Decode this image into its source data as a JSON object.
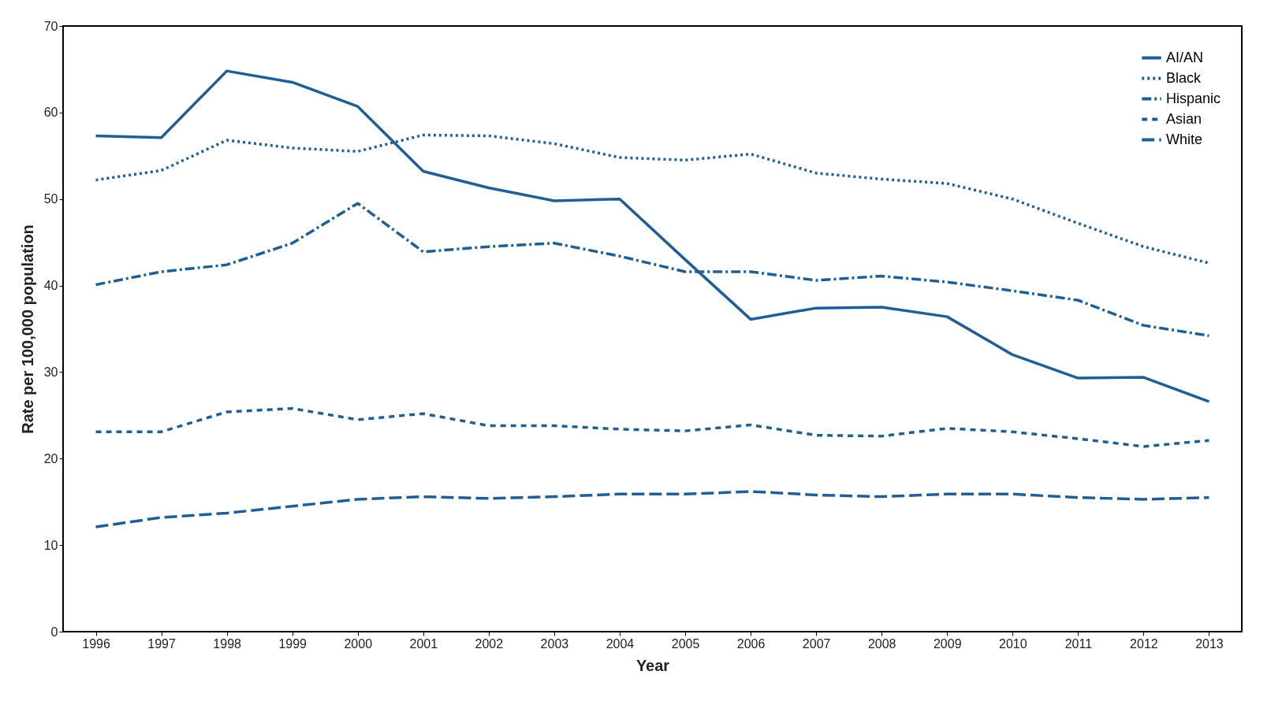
{
  "chart_data": {
    "type": "line",
    "xlabel": "Year",
    "ylabel": "Rate per 100,000 population",
    "categories": [
      "1996",
      "1997",
      "1998",
      "1999",
      "2000",
      "2001",
      "2002",
      "2003",
      "2004",
      "2005",
      "2006",
      "2007",
      "2008",
      "2009",
      "2010",
      "2011",
      "2012",
      "2013"
    ],
    "ylim": [
      0,
      70
    ],
    "yticks": [
      0,
      10,
      20,
      30,
      40,
      50,
      60,
      70
    ],
    "grid": false,
    "legend": "top right",
    "marker": "none",
    "series": [
      {
        "name": "AI/AN",
        "color": "#1f5f96",
        "line_style": "solid",
        "values": [
          57.3,
          57.1,
          64.8,
          63.5,
          60.7,
          53.2,
          51.3,
          49.8,
          50.0,
          43.0,
          36.1,
          37.4,
          37.5,
          36.4,
          32.0,
          29.3,
          29.4,
          26.6
        ]
      },
      {
        "name": "Black",
        "color": "#1f5f96",
        "line_style": "dotted",
        "values": [
          52.2,
          53.3,
          56.8,
          55.9,
          55.5,
          57.4,
          57.3,
          56.4,
          54.8,
          54.5,
          55.2,
          53.0,
          52.3,
          51.8,
          50.0,
          47.2,
          44.5,
          42.6
        ]
      },
      {
        "name": "Hispanic",
        "color": "#1f5f96",
        "line_style": "dashdot",
        "values": [
          40.1,
          41.6,
          42.4,
          44.9,
          49.5,
          43.9,
          44.5,
          44.9,
          43.4,
          41.6,
          41.6,
          40.6,
          41.1,
          40.4,
          39.4,
          38.3,
          35.4,
          34.2
        ]
      },
      {
        "name": "Asian",
        "color": "#1f5f96",
        "line_style": "dashed",
        "values": [
          23.1,
          23.1,
          25.4,
          25.8,
          24.5,
          25.2,
          23.8,
          23.8,
          23.4,
          23.2,
          23.9,
          22.7,
          22.6,
          23.5,
          23.1,
          22.3,
          21.4,
          22.1
        ]
      },
      {
        "name": "White",
        "color": "#1f5f96",
        "line_style": "longdashed",
        "values": [
          12.1,
          13.2,
          13.7,
          14.5,
          15.3,
          15.6,
          15.4,
          15.6,
          15.9,
          15.9,
          16.2,
          15.8,
          15.6,
          15.9,
          15.9,
          15.5,
          15.3,
          15.5
        ]
      }
    ]
  }
}
